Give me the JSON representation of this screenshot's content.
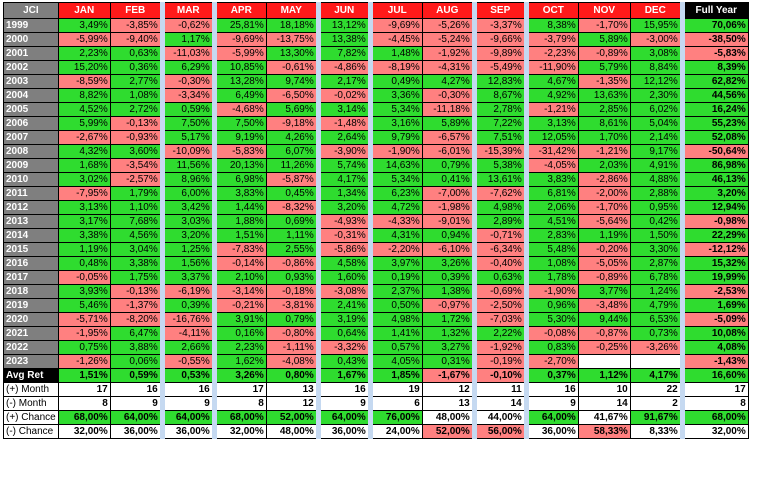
{
  "table": {
    "header": [
      "JCI",
      "JAN",
      "FEB",
      "MAR",
      "APR",
      "MAY",
      "JUN",
      "JUL",
      "AUG",
      "SEP",
      "OCT",
      "NOV",
      "DEC",
      "Full Year"
    ],
    "rows": [
      {
        "label": "1999",
        "cells": [
          "3,49%",
          "-3,85%",
          "-0,62%",
          "25,81%",
          "18,18%",
          "13,12%",
          "-9,69%",
          "-5,26%",
          "-3,37%",
          "8,38%",
          "-1,70%",
          "15,95%",
          "70,06%"
        ]
      },
      {
        "label": "2000",
        "cells": [
          "-5,99%",
          "-9,40%",
          "1,17%",
          "-9,69%",
          "-13,75%",
          "13,38%",
          "-4,45%",
          "-5,24%",
          "-9,66%",
          "-3,79%",
          "5,89%",
          "-3,00%",
          "-38,50%"
        ]
      },
      {
        "label": "2001",
        "cells": [
          "2,23%",
          "0,63%",
          "-11,03%",
          "-5,99%",
          "13,30%",
          "7,82%",
          "1,48%",
          "-1,92%",
          "-9,89%",
          "-2,23%",
          "-0,89%",
          "3,08%",
          "-5,83%"
        ]
      },
      {
        "label": "2002",
        "cells": [
          "15,20%",
          "0,36%",
          "6,29%",
          "10,85%",
          "-0,61%",
          "-4,86%",
          "-8,19%",
          "-4,31%",
          "-5,49%",
          "-11,90%",
          "5,79%",
          "8,84%",
          "8,39%"
        ]
      },
      {
        "label": "2003",
        "cells": [
          "-8,59%",
          "2,77%",
          "-0,30%",
          "13,28%",
          "9,74%",
          "2,17%",
          "0,49%",
          "4,27%",
          "12,83%",
          "4,67%",
          "-1,35%",
          "12,12%",
          "62,82%"
        ]
      },
      {
        "label": "2004",
        "cells": [
          "8,82%",
          "1,08%",
          "-3,34%",
          "6,49%",
          "-6,50%",
          "-0,02%",
          "3,36%",
          "-0,30%",
          "8,67%",
          "4,92%",
          "13,63%",
          "2,30%",
          "44,56%"
        ]
      },
      {
        "label": "2005",
        "cells": [
          "4,52%",
          "2,72%",
          "0,59%",
          "-4,68%",
          "5,69%",
          "3,14%",
          "5,34%",
          "-11,18%",
          "2,78%",
          "-1,21%",
          "2,85%",
          "6,02%",
          "16,24%"
        ]
      },
      {
        "label": "2006",
        "cells": [
          "5,99%",
          "-0,13%",
          "7,50%",
          "7,50%",
          "-9,18%",
          "-1,48%",
          "3,16%",
          "5,89%",
          "7,22%",
          "3,13%",
          "8,61%",
          "5,04%",
          "55,23%"
        ]
      },
      {
        "label": "2007",
        "cells": [
          "-2,67%",
          "-0,93%",
          "5,17%",
          "9,19%",
          "4,26%",
          "2,64%",
          "9,79%",
          "-6,57%",
          "7,51%",
          "12,05%",
          "1,70%",
          "2,14%",
          "52,08%"
        ]
      },
      {
        "label": "2008",
        "cells": [
          "4,32%",
          "3,60%",
          "-10,09%",
          "-5,83%",
          "6,07%",
          "-3,90%",
          "-1,90%",
          "-6,01%",
          "-15,39%",
          "-31,42%",
          "-1,21%",
          "9,17%",
          "-50,64%"
        ]
      },
      {
        "label": "2009",
        "cells": [
          "1,68%",
          "-3,54%",
          "11,56%",
          "20,13%",
          "11,26%",
          "5,74%",
          "14,63%",
          "0,79%",
          "5,38%",
          "-4,05%",
          "2,03%",
          "4,91%",
          "86,98%"
        ]
      },
      {
        "label": "2010",
        "cells": [
          "3,02%",
          "-2,57%",
          "8,96%",
          "6,98%",
          "-5,87%",
          "4,17%",
          "5,34%",
          "0,41%",
          "13,61%",
          "3,83%",
          "-2,86%",
          "4,88%",
          "46,13%"
        ]
      },
      {
        "label": "2011",
        "cells": [
          "-7,95%",
          "1,79%",
          "6,00%",
          "3,83%",
          "0,45%",
          "1,34%",
          "6,23%",
          "-7,00%",
          "-7,62%",
          "6,81%",
          "-2,00%",
          "2,88%",
          "3,20%"
        ]
      },
      {
        "label": "2012",
        "cells": [
          "3,13%",
          "1,10%",
          "3,42%",
          "1,44%",
          "-8,32%",
          "3,20%",
          "4,72%",
          "-1,98%",
          "4,98%",
          "2,06%",
          "-1,70%",
          "0,95%",
          "12,94%"
        ]
      },
      {
        "label": "2013",
        "cells": [
          "3,17%",
          "7,68%",
          "3,03%",
          "1,88%",
          "0,69%",
          "-4,93%",
          "-4,33%",
          "-9,01%",
          "2,89%",
          "4,51%",
          "-5,64%",
          "0,42%",
          "-0,98%"
        ]
      },
      {
        "label": "2014",
        "cells": [
          "3,38%",
          "4,56%",
          "3,20%",
          "1,51%",
          "1,11%",
          "-0,31%",
          "4,31%",
          "0,94%",
          "-0,71%",
          "2,83%",
          "1,19%",
          "1,50%",
          "22,29%"
        ]
      },
      {
        "label": "2015",
        "cells": [
          "1,19%",
          "3,04%",
          "1,25%",
          "-7,83%",
          "2,55%",
          "-5,86%",
          "-2,20%",
          "-6,10%",
          "-6,34%",
          "5,48%",
          "-0,20%",
          "3,30%",
          "-12,12%"
        ]
      },
      {
        "label": "2016",
        "cells": [
          "0,48%",
          "3,38%",
          "1,56%",
          "-0,14%",
          "-0,86%",
          "4,58%",
          "3,97%",
          "3,26%",
          "-0,40%",
          "1,08%",
          "-5,05%",
          "2,87%",
          "15,32%"
        ]
      },
      {
        "label": "2017",
        "cells": [
          "-0,05%",
          "1,75%",
          "3,37%",
          "2,10%",
          "0,93%",
          "1,60%",
          "0,19%",
          "0,39%",
          "0,63%",
          "1,78%",
          "-0,89%",
          "6,78%",
          "19,99%"
        ]
      },
      {
        "label": "2018",
        "cells": [
          "3,93%",
          "-0,13%",
          "-6,19%",
          "-3,14%",
          "-0,18%",
          "-3,08%",
          "2,37%",
          "1,38%",
          "-0,69%",
          "-1,90%",
          "3,77%",
          "1,24%",
          "-2,53%"
        ]
      },
      {
        "label": "2019",
        "cells": [
          "5,46%",
          "-1,37%",
          "0,39%",
          "-0,21%",
          "-3,81%",
          "2,41%",
          "0,50%",
          "-0,97%",
          "-2,50%",
          "0,96%",
          "-3,48%",
          "4,79%",
          "1,69%"
        ]
      },
      {
        "label": "2020",
        "cells": [
          "-5,71%",
          "-8,20%",
          "-16,76%",
          "3,91%",
          "0,79%",
          "3,19%",
          "4,98%",
          "1,72%",
          "-7,03%",
          "5,30%",
          "9,44%",
          "6,53%",
          "-5,09%"
        ]
      },
      {
        "label": "2021",
        "cells": [
          "-1,95%",
          "6,47%",
          "-4,11%",
          "0,16%",
          "-0,80%",
          "0,64%",
          "1,41%",
          "1,32%",
          "2,22%",
          "-0,08%",
          "-0,87%",
          "0,73%",
          "10,08%"
        ]
      },
      {
        "label": "2022",
        "cells": [
          "0,75%",
          "3,88%",
          "2,66%",
          "2,23%",
          "-1,11%",
          "-3,32%",
          "0,57%",
          "3,27%",
          "-1,92%",
          "0,83%",
          "-0,25%",
          "-3,26%",
          "4,08%"
        ]
      },
      {
        "label": "2023",
        "cells": [
          "-1,26%",
          "0,06%",
          "-0,55%",
          "1,62%",
          "-4,08%",
          "0,43%",
          "4,05%",
          "0,31%",
          "-0,19%",
          "-2,70%",
          null,
          null,
          "-1,43%"
        ]
      },
      {
        "label": "Avg Ret",
        "cells": [
          "1,51%",
          "0,59%",
          "0,53%",
          "3,26%",
          "0,80%",
          "1,67%",
          "1,85%",
          "-1,67%",
          "-0,10%",
          "0,37%",
          "1,12%",
          "4,17%",
          "16,60%"
        ]
      },
      {
        "label": "(+) Month",
        "cells": [
          17,
          16,
          16,
          17,
          13,
          16,
          19,
          12,
          11,
          16,
          10,
          22,
          17
        ]
      },
      {
        "label": "(-) Month",
        "cells": [
          8,
          9,
          9,
          8,
          12,
          9,
          6,
          13,
          14,
          9,
          14,
          2,
          8
        ]
      },
      {
        "label": "(+) Chance",
        "cells": [
          "68,00%",
          "64,00%",
          "64,00%",
          "68,00%",
          "52,00%",
          "64,00%",
          "76,00%",
          "48,00%",
          "44,00%",
          "64,00%",
          "41,67%",
          "91,67%",
          "68,00%"
        ]
      },
      {
        "label": "(-) Chance",
        "cells": [
          "32,00%",
          "36,00%",
          "36,00%",
          "32,00%",
          "48,00%",
          "36,00%",
          "24,00%",
          "52,00%",
          "56,00%",
          "36,00%",
          "58,33%",
          "8,33%",
          "32,00%"
        ]
      }
    ]
  }
}
